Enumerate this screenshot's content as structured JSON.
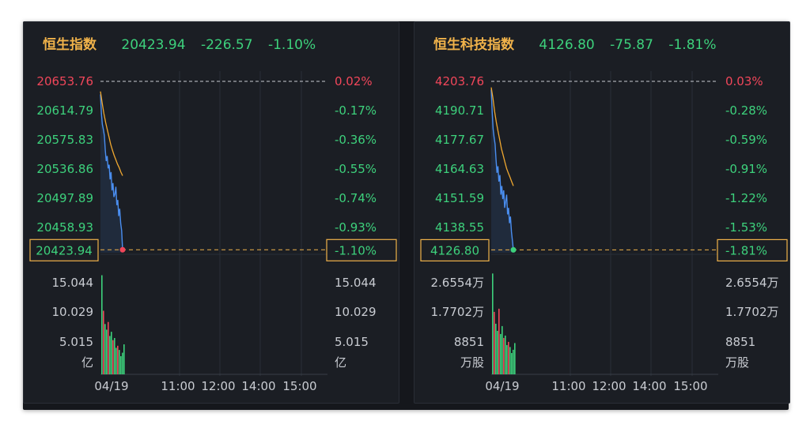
{
  "colors": {
    "up": "#f0465a",
    "down": "#3dd17c",
    "accent": "#f0b24a",
    "avg_line": "#f0a830",
    "price_line": "#4a8ef0",
    "grid": "#2a2f38"
  },
  "time_axis": [
    "04/19",
    "11:00",
    "12:00",
    "14:00",
    "15:00"
  ],
  "chart_data": [
    {
      "type": "line",
      "title": "恒生指数",
      "header": {
        "price": "20423.94",
        "change": "-226.57",
        "pct": "-1.10%"
      },
      "price_ticks": [
        "20653.76",
        "20614.79",
        "20575.83",
        "20536.86",
        "20497.89",
        "20458.93"
      ],
      "pct_ticks": [
        "0.02%",
        "-0.17%",
        "-0.36%",
        "-0.55%",
        "-0.74%",
        "-0.93%"
      ],
      "current_price_label": "20423.94",
      "current_pct_label": "-1.10%",
      "ylim": [
        20420.0,
        20653.76
      ],
      "price_series": [
        20636,
        20610,
        20595,
        20588,
        20580,
        20560,
        20545,
        20552,
        20535,
        20540,
        20520,
        20530,
        20505,
        20515,
        20496,
        20500,
        20510,
        20485,
        20492,
        20470,
        20480,
        20460,
        20450,
        20424
      ],
      "avg_series": [
        20640,
        20624,
        20610,
        20598,
        20588,
        20578,
        20568,
        20560,
        20553,
        20547,
        20541,
        20536,
        20530,
        20525
      ],
      "volume_ticks": [
        "15.044",
        "10.029",
        "5.015",
        "亿"
      ],
      "volume_max": 15.044,
      "volumes": [
        14.2,
        9.1,
        7.2,
        6.4,
        7.5,
        5.5,
        6.1,
        4.9,
        5.2,
        3.8,
        4.1,
        3.5,
        2.6,
        3.1,
        4.3
      ],
      "volume_up": [
        false,
        true,
        false,
        false,
        true,
        false,
        false,
        true,
        false,
        false,
        true,
        false,
        false,
        false,
        false
      ],
      "last_point_color": "#f0465a"
    },
    {
      "type": "line",
      "title": "恒生科技指数",
      "header": {
        "price": "4126.80",
        "change": "-75.87",
        "pct": "-1.81%"
      },
      "price_ticks": [
        "4203.76",
        "4190.71",
        "4177.67",
        "4164.63",
        "4151.59",
        "4138.55"
      ],
      "pct_ticks": [
        "0.03%",
        "-0.28%",
        "-0.59%",
        "-0.91%",
        "-1.22%",
        "-1.53%"
      ],
      "current_price_label": "4126.80",
      "current_pct_label": "-1.81%",
      "ylim": [
        4125.5,
        4203.76
      ],
      "price_series": [
        4200,
        4190,
        4182,
        4178,
        4175,
        4168,
        4162,
        4165,
        4158,
        4161,
        4152,
        4156,
        4150,
        4154,
        4146,
        4149,
        4152,
        4143,
        4146,
        4139,
        4142,
        4135,
        4131,
        4126.8
      ],
      "avg_series": [
        4201,
        4196,
        4190,
        4185,
        4181,
        4177,
        4173,
        4170,
        4167,
        4164,
        4162,
        4160,
        4158,
        4156
      ],
      "volume_ticks": [
        "2.6554万",
        "1.7702万",
        "8851",
        "万股"
      ],
      "volume_max": 26554,
      "volumes": [
        25500,
        15800,
        12800,
        11000,
        16600,
        10200,
        12200,
        9200,
        9800,
        7400,
        8200,
        6900,
        5400,
        6200,
        7900
      ],
      "volume_up": [
        false,
        true,
        false,
        false,
        true,
        false,
        false,
        true,
        false,
        false,
        true,
        false,
        false,
        false,
        false
      ],
      "last_point_color": "#3dd17c"
    }
  ]
}
